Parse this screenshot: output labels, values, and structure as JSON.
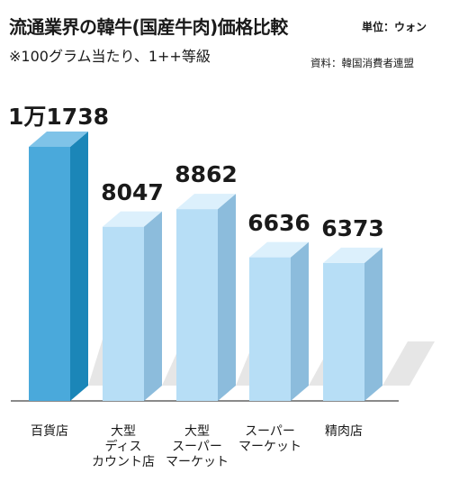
{
  "header": {
    "title": "流通業界の韓牛(国産牛肉)価格比較",
    "unit": "単位：ウォン",
    "note": "※100グラム当たり、1++等級",
    "source": "資料：韓国消費者連盟"
  },
  "chart_data": {
    "type": "bar",
    "title": "流通業界の韓牛(国産牛肉)価格比較",
    "categories": [
      "百貨店",
      "大型\nディス\nカウント店",
      "大型\nスーパー\nマーケット",
      "スーパー\nマーケット",
      "精肉店"
    ],
    "values": [
      11738,
      8047,
      8862,
      6636,
      6373
    ],
    "value_labels": [
      "1万1738",
      "8047",
      "8862",
      "6636",
      "6373"
    ],
    "ylim": [
      0,
      11738
    ],
    "grid": false,
    "legend": "none",
    "colors": {
      "highlight_front": "#4aa9db",
      "highlight_side": "#1b86b8",
      "highlight_top": "#7fc3e8",
      "front": "#b7def6",
      "side": "#8cbcdc",
      "top": "#dcf0fc",
      "shadow": "#dddddd",
      "baseline": "#444444"
    }
  }
}
